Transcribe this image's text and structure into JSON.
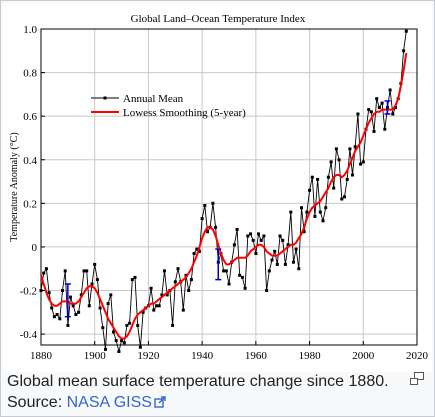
{
  "chart_data": {
    "type": "line",
    "title": "Global Land–Ocean Temperature Index",
    "xlabel": "",
    "ylabel": "Temperature Anomaly (°C)",
    "xlim": [
      1880,
      2020
    ],
    "ylim": [
      -0.45,
      1.0
    ],
    "x_ticks": [
      1880,
      1900,
      1920,
      1940,
      1960,
      1980,
      2000,
      2020
    ],
    "y_ticks": [
      -0.4,
      -0.2,
      0,
      0.2,
      0.4,
      0.6,
      0.8,
      1.0
    ],
    "x_tick_labels": [
      "1880",
      "1900",
      "1920",
      "1940",
      "1960",
      "1980",
      "2000",
      "2020"
    ],
    "y_tick_labels": [
      "-0.4",
      "-0.2",
      "0",
      "0.2",
      "0.4",
      "0.6",
      "0.8",
      "1.0"
    ],
    "grid": true,
    "legend_position": "upper-left",
    "x": [
      1880,
      1881,
      1882,
      1883,
      1884,
      1885,
      1886,
      1887,
      1888,
      1889,
      1890,
      1891,
      1892,
      1893,
      1894,
      1895,
      1896,
      1897,
      1898,
      1899,
      1900,
      1901,
      1902,
      1903,
      1904,
      1905,
      1906,
      1907,
      1908,
      1909,
      1910,
      1911,
      1912,
      1913,
      1914,
      1915,
      1916,
      1917,
      1918,
      1919,
      1920,
      1921,
      1922,
      1923,
      1924,
      1925,
      1926,
      1927,
      1928,
      1929,
      1930,
      1931,
      1932,
      1933,
      1934,
      1935,
      1936,
      1937,
      1938,
      1939,
      1940,
      1941,
      1942,
      1943,
      1944,
      1945,
      1946,
      1947,
      1948,
      1949,
      1950,
      1951,
      1952,
      1953,
      1954,
      1955,
      1956,
      1957,
      1958,
      1959,
      1960,
      1961,
      1962,
      1963,
      1964,
      1965,
      1966,
      1967,
      1968,
      1969,
      1970,
      1971,
      1972,
      1973,
      1974,
      1975,
      1976,
      1977,
      1978,
      1979,
      1980,
      1981,
      1982,
      1983,
      1984,
      1985,
      1986,
      1987,
      1988,
      1989,
      1990,
      1991,
      1992,
      1993,
      1994,
      1995,
      1996,
      1997,
      1998,
      1999,
      2000,
      2001,
      2002,
      2003,
      2004,
      2005,
      2006,
      2007,
      2008,
      2009,
      2010,
      2011,
      2012,
      2013,
      2014,
      2015,
      2016
    ],
    "series": [
      {
        "name": "Annual Mean",
        "color": "#000000",
        "marker": "square",
        "values": [
          -0.2,
          -0.12,
          -0.1,
          -0.21,
          -0.28,
          -0.32,
          -0.31,
          -0.33,
          -0.2,
          -0.11,
          -0.36,
          -0.23,
          -0.27,
          -0.31,
          -0.3,
          -0.22,
          -0.11,
          -0.11,
          -0.27,
          -0.17,
          -0.08,
          -0.15,
          -0.28,
          -0.37,
          -0.47,
          -0.26,
          -0.22,
          -0.39,
          -0.43,
          -0.48,
          -0.43,
          -0.44,
          -0.36,
          -0.35,
          -0.15,
          -0.14,
          -0.36,
          -0.46,
          -0.3,
          -0.28,
          -0.27,
          -0.19,
          -0.29,
          -0.27,
          -0.27,
          -0.22,
          -0.11,
          -0.22,
          -0.2,
          -0.36,
          -0.16,
          -0.1,
          -0.16,
          -0.29,
          -0.13,
          -0.2,
          -0.15,
          -0.03,
          -0.01,
          -0.02,
          0.13,
          0.19,
          0.07,
          0.09,
          0.2,
          0.09,
          -0.07,
          -0.03,
          -0.11,
          -0.11,
          -0.17,
          -0.07,
          0.01,
          0.08,
          -0.13,
          -0.14,
          -0.19,
          0.05,
          0.06,
          0.03,
          -0.03,
          0.06,
          0.03,
          0.05,
          -0.2,
          -0.11,
          -0.06,
          -0.02,
          -0.08,
          0.05,
          0.03,
          -0.08,
          0.01,
          0.16,
          -0.07,
          -0.01,
          -0.1,
          0.18,
          0.07,
          0.16,
          0.26,
          0.32,
          0.14,
          0.31,
          0.16,
          0.12,
          0.18,
          0.32,
          0.39,
          0.27,
          0.45,
          0.4,
          0.22,
          0.23,
          0.31,
          0.45,
          0.33,
          0.46,
          0.61,
          0.38,
          0.39,
          0.54,
          0.63,
          0.62,
          0.53,
          0.68,
          0.64,
          0.66,
          0.54,
          0.64,
          0.72,
          0.61,
          0.64,
          0.68,
          0.75,
          0.9,
          0.99
        ]
      },
      {
        "name": "Lowess Smoothing (5-year)",
        "color": "#ff0000",
        "values": [
          -0.13,
          -0.17,
          -0.21,
          -0.24,
          -0.26,
          -0.27,
          -0.27,
          -0.26,
          -0.25,
          -0.25,
          -0.25,
          -0.26,
          -0.26,
          -0.26,
          -0.25,
          -0.23,
          -0.21,
          -0.19,
          -0.18,
          -0.18,
          -0.19,
          -0.21,
          -0.24,
          -0.27,
          -0.3,
          -0.33,
          -0.35,
          -0.37,
          -0.39,
          -0.41,
          -0.42,
          -0.42,
          -0.41,
          -0.39,
          -0.36,
          -0.33,
          -0.31,
          -0.3,
          -0.29,
          -0.28,
          -0.27,
          -0.26,
          -0.26,
          -0.25,
          -0.24,
          -0.23,
          -0.22,
          -0.21,
          -0.2,
          -0.19,
          -0.18,
          -0.17,
          -0.16,
          -0.15,
          -0.14,
          -0.12,
          -0.1,
          -0.07,
          -0.04,
          0.0,
          0.04,
          0.07,
          0.09,
          0.09,
          0.08,
          0.05,
          0.01,
          -0.03,
          -0.06,
          -0.08,
          -0.08,
          -0.07,
          -0.06,
          -0.05,
          -0.05,
          -0.05,
          -0.05,
          -0.04,
          -0.02,
          -0.01,
          0.0,
          0.01,
          0.01,
          0.0,
          -0.02,
          -0.03,
          -0.04,
          -0.04,
          -0.04,
          -0.03,
          -0.02,
          -0.01,
          0.0,
          0.01,
          0.01,
          0.02,
          0.04,
          0.06,
          0.09,
          0.13,
          0.16,
          0.18,
          0.19,
          0.2,
          0.21,
          0.23,
          0.25,
          0.27,
          0.3,
          0.32,
          0.33,
          0.33,
          0.32,
          0.33,
          0.35,
          0.38,
          0.41,
          0.44,
          0.46,
          0.48,
          0.51,
          0.54,
          0.57,
          0.59,
          0.61,
          0.62,
          0.62,
          0.63,
          0.63,
          0.63,
          0.63,
          0.63,
          0.65,
          0.68,
          0.74,
          0.81,
          0.89
        ]
      }
    ],
    "uncertainty_bars": {
      "color": "#0000cc",
      "items": [
        {
          "x": 1890,
          "low": -0.32,
          "high": -0.17
        },
        {
          "x": 1946,
          "low": -0.15,
          "high": -0.01
        },
        {
          "x": 2009,
          "low": 0.61,
          "high": 0.67
        }
      ]
    }
  },
  "caption": {
    "text": "Global mean surface temperature change since 1880. Source: ",
    "link_text": "NASA GISS"
  },
  "icons": {
    "enlarge": "magnify-clip-icon",
    "external_link": "external-link-icon"
  }
}
